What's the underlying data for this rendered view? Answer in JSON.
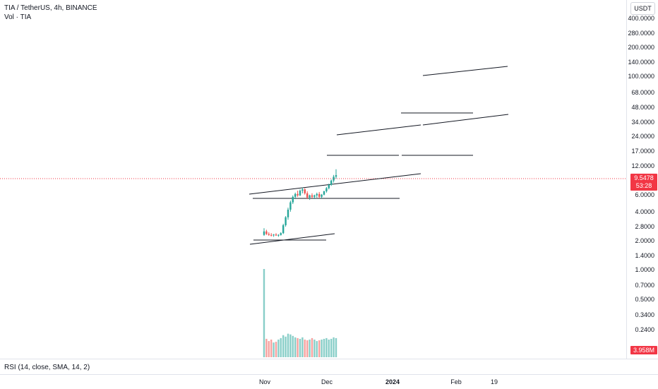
{
  "header": {
    "symbol_title": "TIA / TetherUS, 4h, BINANCE",
    "volume_indicator": "Vol · TIA"
  },
  "price_scale": {
    "currency_button": "USDT",
    "ticks": [
      "400.0000",
      "280.0000",
      "200.0000",
      "140.0000",
      "100.0000",
      "68.0000",
      "48.0000",
      "34.0000",
      "24.0000",
      "17.0000",
      "12.0000",
      "6.0000",
      "4.0000",
      "2.8000",
      "2.0000",
      "1.4000",
      "1.0000",
      "0.7000",
      "0.5000",
      "0.3400",
      "0.2400"
    ],
    "last_price": "9.5478",
    "countdown": "53:28",
    "volume_value": "3.958M"
  },
  "rsi": {
    "label": "RSI (14, close, SMA, 14, 2)"
  },
  "time_axis": {
    "labels": [
      {
        "text": "Nov",
        "bold": false
      },
      {
        "text": "Dec",
        "bold": false
      },
      {
        "text": "2024",
        "bold": true
      },
      {
        "text": "Feb",
        "bold": false
      },
      {
        "text": "19",
        "bold": false
      }
    ]
  },
  "colors": {
    "up": "#26a69a",
    "down": "#ef5350",
    "line": "#131722",
    "last_price": "#f23645"
  },
  "chart_data": {
    "type": "candlestick",
    "scale": "log",
    "price_range": [
      0.2,
      400
    ],
    "series": [
      {
        "name": "TIA/USDT",
        "ohlc": [
          [
            2.3,
            2.7,
            2.25,
            2.5
          ],
          [
            2.5,
            2.6,
            2.3,
            2.35
          ],
          [
            2.35,
            2.45,
            2.25,
            2.3
          ],
          [
            2.3,
            2.4,
            2.22,
            2.28
          ],
          [
            2.28,
            2.35,
            2.2,
            2.32
          ],
          [
            2.32,
            2.4,
            2.25,
            2.27
          ],
          [
            2.27,
            2.34,
            2.2,
            2.3
          ],
          [
            2.3,
            2.45,
            2.26,
            2.4
          ],
          [
            2.4,
            3.0,
            2.35,
            2.9
          ],
          [
            2.9,
            3.6,
            2.8,
            3.5
          ],
          [
            3.5,
            4.4,
            3.3,
            4.2
          ],
          [
            4.2,
            5.2,
            4.0,
            5.0
          ],
          [
            5.0,
            5.9,
            4.8,
            5.7
          ],
          [
            5.7,
            6.3,
            5.4,
            6.1
          ],
          [
            6.1,
            6.6,
            5.7,
            5.9
          ],
          [
            5.9,
            6.8,
            5.8,
            6.6
          ],
          [
            6.6,
            7.1,
            6.2,
            6.8
          ],
          [
            6.8,
            7.0,
            6.0,
            6.2
          ],
          [
            6.2,
            6.5,
            5.4,
            5.6
          ],
          [
            5.6,
            6.0,
            5.3,
            5.9
          ],
          [
            5.9,
            6.2,
            5.5,
            5.7
          ],
          [
            5.7,
            6.0,
            5.4,
            5.9
          ],
          [
            5.9,
            6.3,
            5.6,
            6.1
          ],
          [
            6.1,
            6.4,
            5.5,
            5.7
          ],
          [
            5.7,
            6.1,
            5.5,
            6.0
          ],
          [
            6.0,
            6.6,
            5.9,
            6.5
          ],
          [
            6.5,
            7.2,
            6.3,
            7.0
          ],
          [
            7.0,
            7.8,
            6.8,
            7.6
          ],
          [
            7.6,
            8.6,
            7.4,
            8.4
          ],
          [
            8.4,
            9.6,
            8.0,
            9.2
          ],
          [
            9.2,
            11.0,
            8.8,
            9.55
          ]
        ]
      }
    ],
    "volume": [
      1.2,
      0.25,
      0.22,
      0.24,
      0.2,
      0.21,
      0.24,
      0.26,
      0.3,
      0.28,
      0.32,
      0.31,
      0.29,
      0.27,
      0.26,
      0.25,
      0.27,
      0.24,
      0.23,
      0.24,
      0.26,
      0.24,
      0.22,
      0.23,
      0.24,
      0.25,
      0.26,
      0.24,
      0.25,
      0.27,
      0.26
    ],
    "volume_range": [
      0.2,
      1.2
    ]
  }
}
